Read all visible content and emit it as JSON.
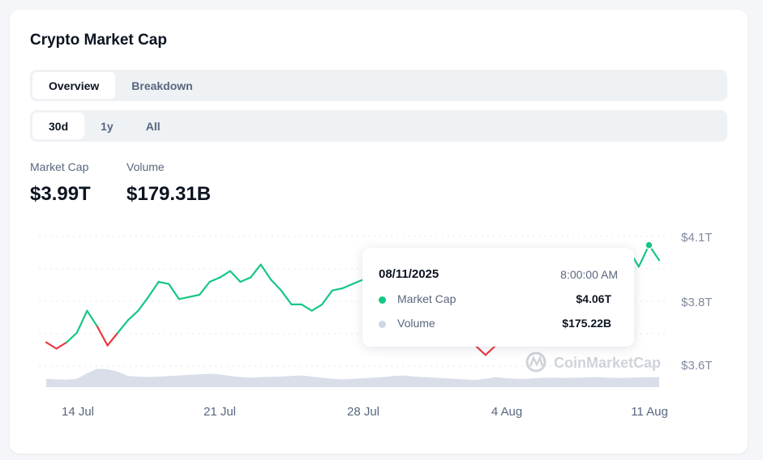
{
  "title": "Crypto Market Cap",
  "view_tabs": [
    {
      "label": "Overview",
      "active": true
    },
    {
      "label": "Breakdown",
      "active": false
    }
  ],
  "range_tabs": [
    {
      "label": "30d",
      "active": true
    },
    {
      "label": "1y",
      "active": false
    },
    {
      "label": "All",
      "active": false
    }
  ],
  "stats": {
    "market_cap_label": "Market Cap",
    "market_cap_value": "$3.99T",
    "volume_label": "Volume",
    "volume_value": "$179.31B"
  },
  "tooltip": {
    "date": "08/11/2025",
    "time": "8:00:00 AM",
    "market_cap_label": "Market Cap",
    "market_cap_value": "$4.06T",
    "volume_label": "Volume",
    "volume_value": "$175.22B"
  },
  "watermark": "CoinMarketCap",
  "colors": {
    "up": "#16c784",
    "down": "#ea3943",
    "volume": "#cfd6e4",
    "grid": "#e3e7ee",
    "axis_text": "#808a9d"
  },
  "chart_data": {
    "type": "line",
    "y_ticks": [
      "$4.1T",
      "$3.8T",
      "$3.6T"
    ],
    "x_ticks": [
      "14 Jul",
      "21 Jul",
      "28 Jul",
      "4 Aug",
      "11 Aug"
    ],
    "grid": true,
    "highlight_index": 59,
    "x": [
      "2025-07-12 12:00",
      "2025-07-13 00:00",
      "2025-07-13 12:00",
      "2025-07-14 00:00",
      "2025-07-14 12:00",
      "2025-07-15 00:00",
      "2025-07-15 12:00",
      "2025-07-16 00:00",
      "2025-07-16 12:00",
      "2025-07-17 00:00",
      "2025-07-17 12:00",
      "2025-07-18 00:00",
      "2025-07-18 12:00",
      "2025-07-19 00:00",
      "2025-07-19 12:00",
      "2025-07-20 00:00",
      "2025-07-20 12:00",
      "2025-07-21 00:00",
      "2025-07-21 12:00",
      "2025-07-22 00:00",
      "2025-07-22 12:00",
      "2025-07-23 00:00",
      "2025-07-23 12:00",
      "2025-07-24 00:00",
      "2025-07-24 12:00",
      "2025-07-25 00:00",
      "2025-07-25 12:00",
      "2025-07-26 00:00",
      "2025-07-26 12:00",
      "2025-07-27 00:00",
      "2025-07-27 12:00",
      "2025-07-28 00:00",
      "2025-07-28 12:00",
      "2025-07-29 00:00",
      "2025-07-29 12:00",
      "2025-07-30 00:00",
      "2025-07-30 12:00",
      "2025-07-31 00:00",
      "2025-07-31 12:00",
      "2025-08-01 00:00",
      "2025-08-01 12:00",
      "2025-08-02 00:00",
      "2025-08-02 12:00",
      "2025-08-03 00:00",
      "2025-08-03 12:00",
      "2025-08-04 00:00",
      "2025-08-04 12:00",
      "2025-08-05 00:00",
      "2025-08-05 12:00",
      "2025-08-06 00:00",
      "2025-08-06 12:00",
      "2025-08-07 00:00",
      "2025-08-07 12:00",
      "2025-08-08 00:00",
      "2025-08-08 12:00",
      "2025-08-09 00:00",
      "2025-08-09 12:00",
      "2025-08-10 00:00",
      "2025-08-10 12:00",
      "2025-08-11 08:00",
      "2025-08-11 12:00"
    ],
    "series": [
      {
        "name": "Market Cap",
        "unit": "T",
        "values": [
          3.67,
          3.65,
          3.67,
          3.7,
          3.77,
          3.72,
          3.66,
          3.7,
          3.74,
          3.77,
          3.82,
          3.89,
          3.88,
          3.81,
          3.82,
          3.83,
          3.89,
          3.91,
          3.94,
          3.89,
          3.91,
          3.97,
          3.9,
          3.85,
          3.79,
          3.79,
          3.77,
          3.79,
          3.85,
          3.86,
          3.88,
          3.9,
          3.92,
          3.93,
          3.94,
          3.96,
          3.94,
          3.92,
          3.89,
          3.84,
          3.78,
          3.71,
          3.66,
          3.63,
          3.66,
          3.7,
          3.75,
          3.78,
          3.81,
          3.84,
          3.86,
          3.88,
          3.91,
          3.93,
          3.95,
          3.98,
          4.02,
          4.04,
          3.96,
          4.06,
          3.99
        ]
      },
      {
        "name": "Volume",
        "unit": "B",
        "values": [
          150,
          140,
          135,
          150,
          250,
          330,
          320,
          280,
          200,
          190,
          180,
          190,
          200,
          210,
          220,
          230,
          240,
          230,
          200,
          180,
          170,
          180,
          185,
          190,
          200,
          210,
          190,
          170,
          150,
          140,
          150,
          160,
          170,
          180,
          200,
          210,
          190,
          180,
          170,
          160,
          150,
          140,
          130,
          150,
          180,
          160,
          150,
          150,
          160,
          170,
          170,
          165,
          170,
          175,
          180,
          170,
          165,
          170,
          175,
          175.22,
          180
        ]
      }
    ]
  }
}
